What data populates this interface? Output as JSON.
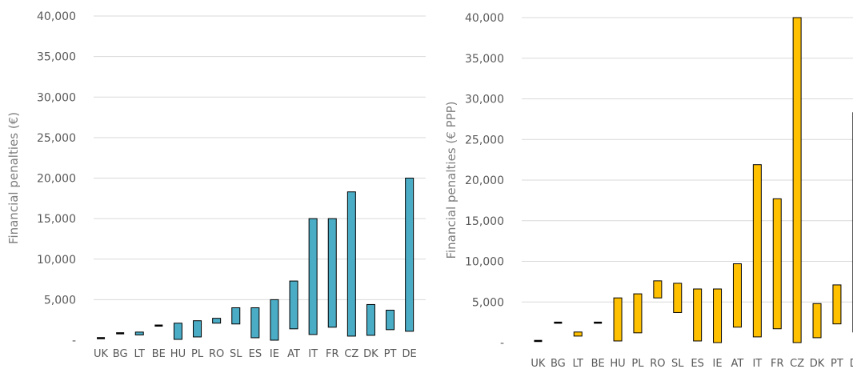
{
  "chart_data": [
    {
      "type": "bar",
      "style": "floating-range",
      "title": "",
      "xlabel": "",
      "ylabel": "Financial penalties (€)",
      "ylim": [
        0,
        40000
      ],
      "yticks": [
        "-",
        "5,000",
        "10,000",
        "15,000",
        "20,000",
        "25,000",
        "30,000",
        "35,000",
        "40,000"
      ],
      "grid": true,
      "color": "#4bacc6",
      "categories": [
        "UK",
        "BG",
        "LT",
        "BE",
        "HU",
        "PL",
        "RO",
        "SL",
        "ES",
        "IE",
        "AT",
        "IT",
        "FR",
        "CZ",
        "DK",
        "PT",
        "DE"
      ],
      "series": [
        {
          "low": [
            250,
            850,
            650,
            1800,
            100,
            400,
            2100,
            2000,
            300,
            0,
            1400,
            700,
            1600,
            500,
            600,
            1300,
            1100
          ],
          "high": [
            250,
            850,
            1000,
            1800,
            2100,
            2400,
            2700,
            4000,
            4000,
            5000,
            7300,
            15000,
            15000,
            18300,
            4400,
            3700,
            20000
          ]
        }
      ]
    },
    {
      "type": "bar",
      "style": "floating-range",
      "title": "",
      "xlabel": "",
      "ylabel": "Financial penalties (€ PPP)",
      "ylim": [
        0,
        40000
      ],
      "yticks": [
        "-",
        "5,000",
        "10,000",
        "15,000",
        "20,000",
        "25,000",
        "30,000",
        "35,000",
        "40,000"
      ],
      "grid": true,
      "color": "#ffc000",
      "categories": [
        "UK",
        "BG",
        "LT",
        "BE",
        "HU",
        "PL",
        "RO",
        "SL",
        "ES",
        "IE",
        "AT",
        "IT",
        "FR",
        "CZ",
        "DK",
        "PT",
        "DE"
      ],
      "series": [
        {
          "low": [
            200,
            2450,
            800,
            2450,
            200,
            1200,
            5500,
            3700,
            200,
            0,
            1900,
            700,
            1700,
            0,
            600,
            2300,
            1300
          ],
          "high": [
            200,
            2450,
            1300,
            2450,
            5500,
            6000,
            7600,
            7300,
            6600,
            6600,
            9700,
            21900,
            17700,
            40000,
            4800,
            7100,
            28300
          ]
        }
      ]
    }
  ]
}
